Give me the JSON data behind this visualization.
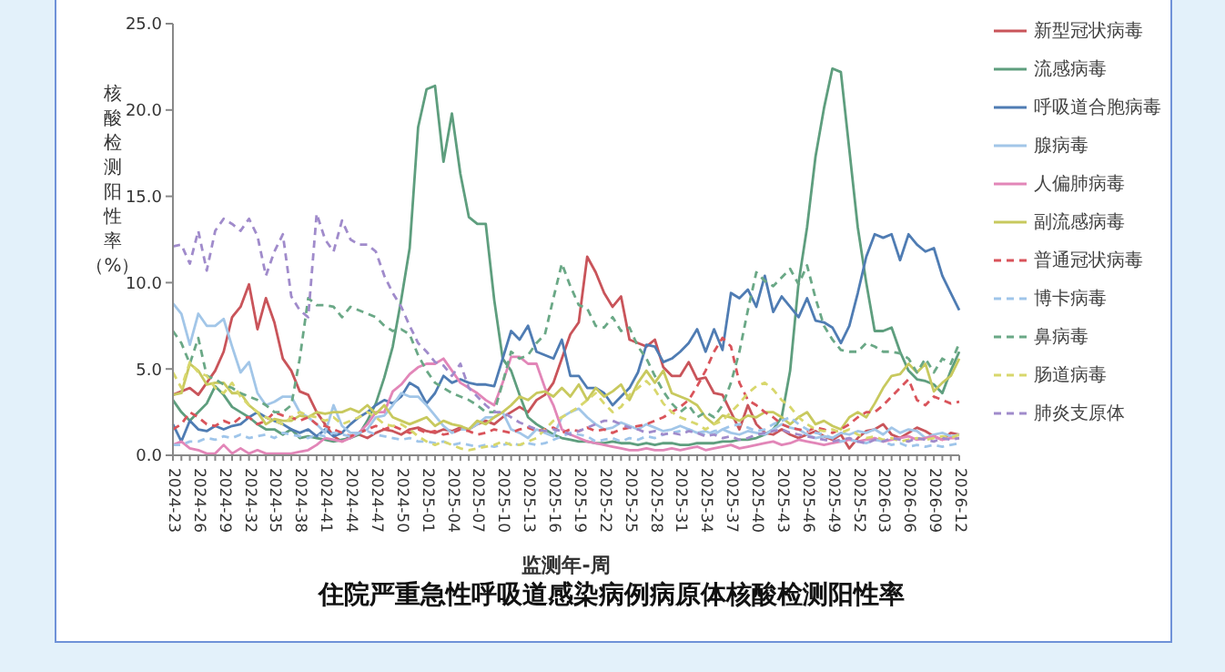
{
  "chart_data": {
    "type": "line",
    "title": "住院严重急性呼吸道感染病例病原体核酸检测阳性率",
    "xlabel": "监测年-周",
    "ylabel": "核酸检测阳性率（%）",
    "categories": [
      "2024-23",
      null,
      null,
      "2024-26",
      null,
      null,
      "2024-29",
      null,
      null,
      "2024-32",
      null,
      null,
      "2024-35",
      null,
      null,
      "2024-38",
      null,
      null,
      "2024-41",
      null,
      null,
      "2024-44",
      null,
      null,
      "2024-47",
      null,
      null,
      "2024-50",
      null,
      null,
      "2025-01",
      null,
      null,
      "2025-04",
      null,
      null,
      "2025-07",
      null,
      null,
      "2025-10",
      null,
      null,
      "2025-13",
      null,
      null,
      "2025-16",
      null,
      null,
      "2025-19",
      null,
      null,
      "2025-22",
      null,
      null,
      "2025-25",
      null,
      null,
      "2025-28",
      null,
      null,
      "2025-31",
      null,
      null,
      "2025-34",
      null,
      null,
      "2025-37",
      null,
      null,
      "2025-40",
      null,
      null,
      "2025-43",
      null,
      null,
      "2025-46",
      null,
      null,
      "2025-49",
      null,
      null,
      "2025-52",
      null,
      null,
      "2026-03",
      null,
      null,
      "2026-06",
      null,
      null,
      "2026-09",
      null,
      null,
      "2026-12"
    ],
    "ylim": [
      0,
      25
    ],
    "yticks": [
      {
        "value": 0,
        "label": "0.0"
      },
      {
        "value": 5,
        "label": "5.0"
      },
      {
        "value": 10,
        "label": "10.0"
      },
      {
        "value": 15,
        "label": "15.0"
      },
      {
        "value": 20,
        "label": "20.0"
      },
      {
        "value": 25,
        "label": "25.0"
      }
    ],
    "grid": false,
    "legend": "right",
    "marker": "none",
    "series": [
      {
        "name": "新型冠状病毒",
        "color": "#c9545a",
        "line_style": "solid",
        "values": [
          3.5,
          3.7,
          3.9,
          3.5,
          4.2,
          4.9,
          6.0,
          8.0,
          8.6,
          9.9,
          7.3,
          9.1,
          7.7,
          5.6,
          4.9,
          3.7,
          3.5,
          2.5,
          1.8,
          1.1,
          0.8,
          1.1,
          1.2,
          1.0,
          1.3,
          1.5,
          1.4,
          1.2,
          1.5,
          1.6,
          1.4,
          1.3,
          1.5,
          1.4,
          1.6,
          1.5,
          1.8,
          2.0,
          1.8,
          2.2,
          2.5,
          2.8,
          2.5,
          3.2,
          3.5,
          4.2,
          5.6,
          7.0,
          7.7,
          11.5,
          10.6,
          9.4,
          8.6,
          9.2,
          6.7,
          6.5,
          6.3,
          6.7,
          5.1,
          4.6,
          4.6,
          5.4,
          4.4,
          4.5,
          3.6,
          3.5,
          2.5,
          1.5,
          2.9,
          1.8,
          1.3,
          1.2,
          1.5,
          1.2,
          1.0,
          1.2,
          1.4,
          1.1,
          0.9,
          1.2,
          0.4,
          1.0,
          1.4,
          1.5,
          1.8,
          1.2,
          1.0,
          1.3,
          1.6,
          1.4,
          1.1,
          0.9,
          1.3,
          1.2
        ]
      },
      {
        "name": "流感病毒",
        "color": "#5e9e7e",
        "line_style": "solid",
        "values": [
          3.2,
          2.5,
          2.0,
          2.5,
          3.0,
          4.0,
          3.5,
          2.8,
          2.5,
          2.2,
          1.8,
          1.5,
          1.5,
          1.2,
          1.5,
          1.0,
          1.1,
          1.0,
          0.9,
          0.8,
          0.9,
          1.0,
          1.2,
          2.0,
          3.0,
          4.5,
          6.3,
          9.0,
          12.0,
          19.0,
          21.2,
          21.4,
          17.0,
          19.8,
          16.3,
          13.8,
          13.4,
          13.4,
          9.0,
          5.6,
          4.9,
          3.5,
          2.2,
          1.8,
          1.5,
          1.2,
          1.0,
          0.9,
          0.8,
          0.8,
          0.7,
          0.7,
          0.8,
          0.7,
          0.7,
          0.6,
          0.7,
          0.6,
          0.7,
          0.7,
          0.6,
          0.6,
          0.7,
          0.7,
          0.7,
          0.8,
          0.8,
          0.9,
          0.9,
          1.0,
          1.2,
          1.5,
          2.2,
          4.9,
          10.0,
          13.2,
          17.3,
          20.1,
          22.4,
          22.2,
          17.7,
          13.2,
          10.0,
          7.2,
          7.2,
          7.4,
          6.0,
          4.9,
          4.4,
          4.3,
          4.1,
          3.6,
          4.9,
          6.0
        ]
      },
      {
        "name": "呼吸道合胞病毒",
        "color": "#4f7cb3",
        "line_style": "solid",
        "values": [
          1.8,
          0.8,
          2.0,
          1.5,
          1.4,
          1.7,
          1.5,
          1.7,
          1.8,
          2.2,
          2.5,
          2.2,
          2.0,
          1.8,
          1.5,
          1.3,
          1.5,
          1.1,
          1.5,
          1.1,
          1.3,
          1.8,
          2.2,
          2.5,
          2.9,
          3.2,
          3.0,
          3.4,
          4.2,
          3.9,
          3.0,
          3.6,
          4.6,
          4.2,
          4.4,
          4.2,
          4.1,
          4.1,
          4.0,
          5.6,
          7.2,
          6.7,
          7.5,
          6.0,
          5.8,
          5.6,
          6.7,
          4.6,
          4.6,
          3.9,
          3.9,
          3.6,
          2.9,
          3.4,
          3.9,
          4.8,
          6.4,
          6.3,
          5.4,
          5.6,
          6.0,
          6.5,
          7.3,
          6.0,
          7.3,
          6.1,
          9.4,
          9.1,
          9.6,
          8.6,
          10.4,
          8.3,
          9.2,
          8.6,
          8.0,
          9.1,
          7.8,
          7.7,
          7.4,
          6.5,
          7.5,
          9.4,
          11.5,
          12.8,
          12.6,
          12.8,
          11.3,
          12.8,
          12.2,
          11.8,
          12.0,
          10.4,
          9.4,
          8.4
        ]
      },
      {
        "name": "腺病毒",
        "color": "#a2c6e8",
        "line_style": "solid",
        "values": [
          8.8,
          8.2,
          6.4,
          8.2,
          7.5,
          7.5,
          7.9,
          6.3,
          4.8,
          5.4,
          3.6,
          2.9,
          3.1,
          3.4,
          3.4,
          2.5,
          2.2,
          1.8,
          1.3,
          2.9,
          1.7,
          1.3,
          1.3,
          1.5,
          2.2,
          2.3,
          2.9,
          3.6,
          3.4,
          3.4,
          2.9,
          2.3,
          1.7,
          1.3,
          1.5,
          1.5,
          1.8,
          2.2,
          2.2,
          2.5,
          1.5,
          1.3,
          1.0,
          1.5,
          1.3,
          1.1,
          2.2,
          2.5,
          2.7,
          2.2,
          1.8,
          1.5,
          1.6,
          1.9,
          1.7,
          1.5,
          1.8,
          1.6,
          1.4,
          1.5,
          1.7,
          1.5,
          1.3,
          1.4,
          1.2,
          1.5,
          1.3,
          1.2,
          1.4,
          1.3,
          1.2,
          1.5,
          1.8,
          1.6,
          1.5,
          1.2,
          1.0,
          1.1,
          1.0,
          1.3,
          1.2,
          1.4,
          1.3,
          1.5,
          1.2,
          1.6,
          1.3,
          1.5,
          1.4,
          1.0,
          1.2,
          1.3,
          1.1,
          1.2
        ]
      },
      {
        "name": "人偏肺病毒",
        "color": "#e286b8",
        "line_style": "solid",
        "values": [
          0.6,
          0.8,
          0.4,
          0.3,
          0.1,
          0.1,
          0.6,
          0.1,
          0.4,
          0.1,
          0.3,
          0.1,
          0.1,
          0.1,
          0.1,
          0.2,
          0.3,
          0.6,
          1.0,
          0.9,
          0.8,
          1.0,
          1.3,
          1.8,
          2.5,
          2.5,
          3.7,
          4.1,
          4.7,
          5.1,
          5.3,
          5.3,
          5.6,
          4.9,
          4.2,
          3.9,
          3.6,
          3.2,
          2.9,
          4.2,
          5.7,
          5.7,
          5.3,
          5.3,
          3.9,
          2.9,
          1.5,
          1.2,
          1.0,
          0.8,
          0.7,
          0.6,
          0.5,
          0.4,
          0.3,
          0.3,
          0.4,
          0.3,
          0.3,
          0.4,
          0.3,
          0.4,
          0.5,
          0.3,
          0.4,
          0.5,
          0.6,
          0.4,
          0.5,
          0.6,
          0.7,
          0.8,
          0.6,
          0.7,
          0.9,
          0.8,
          0.7,
          0.6,
          0.7,
          0.8,
          0.9,
          0.8,
          0.9,
          1.0,
          0.8,
          0.9,
          1.0,
          1.1,
          0.9,
          1.0,
          1.1,
          0.9,
          1.0,
          1.0
        ]
      },
      {
        "name": "副流感病毒",
        "color": "#c8c95e",
        "line_style": "solid",
        "values": [
          3.5,
          3.6,
          5.3,
          4.9,
          4.1,
          4.2,
          4.2,
          3.6,
          3.6,
          2.9,
          2.5,
          1.8,
          2.1,
          2.0,
          2.0,
          2.3,
          2.2,
          2.5,
          2.4,
          2.5,
          2.5,
          2.7,
          2.5,
          2.9,
          2.4,
          2.9,
          2.2,
          2.0,
          1.8,
          2.0,
          2.2,
          1.7,
          2.0,
          1.8,
          1.7,
          1.5,
          2.0,
          1.8,
          2.2,
          2.5,
          2.9,
          3.4,
          3.2,
          3.6,
          3.7,
          3.4,
          3.9,
          3.4,
          4.1,
          3.2,
          3.9,
          3.4,
          3.7,
          4.1,
          3.2,
          4.2,
          4.9,
          4.2,
          4.9,
          3.6,
          3.4,
          3.2,
          2.9,
          2.2,
          1.8,
          2.3,
          2.2,
          2.0,
          2.3,
          2.2,
          2.5,
          2.5,
          2.2,
          1.8,
          2.2,
          2.5,
          1.8,
          2.0,
          1.7,
          1.5,
          2.2,
          2.5,
          2.2,
          3.0,
          3.9,
          4.6,
          4.7,
          5.3,
          4.8,
          5.3,
          3.7,
          4.2,
          4.6,
          5.6
        ]
      },
      {
        "name": "普通冠状病毒",
        "color": "#d9535a",
        "line_style": "dashed",
        "values": [
          1.5,
          1.8,
          2.5,
          2.2,
          1.8,
          1.7,
          2.0,
          1.8,
          2.2,
          2.2,
          1.8,
          2.0,
          2.5,
          2.3,
          2.2,
          2.0,
          2.2,
          1.8,
          1.7,
          1.5,
          1.3,
          1.1,
          1.3,
          1.5,
          1.7,
          1.5,
          1.7,
          1.5,
          1.3,
          1.5,
          1.3,
          1.4,
          1.2,
          1.3,
          1.5,
          1.4,
          1.2,
          1.3,
          1.5,
          1.4,
          1.3,
          1.5,
          1.6,
          1.4,
          1.5,
          1.6,
          1.3,
          1.5,
          1.4,
          1.6,
          1.4,
          1.5,
          1.3,
          1.5,
          1.6,
          1.7,
          1.8,
          2.0,
          2.2,
          2.5,
          2.8,
          3.2,
          4.0,
          4.9,
          6.0,
          6.8,
          6.3,
          4.2,
          3.2,
          2.9,
          2.5,
          2.2,
          1.8,
          1.6,
          1.5,
          1.4,
          1.6,
          1.5,
          1.3,
          1.5,
          1.8,
          2.2,
          2.5,
          2.5,
          2.9,
          3.4,
          3.9,
          4.4,
          3.2,
          2.9,
          3.4,
          3.2,
          3.0,
          3.1
        ]
      },
      {
        "name": "博卡病毒",
        "color": "#9fc5ea",
        "line_style": "dashed",
        "values": [
          0.6,
          0.6,
          0.8,
          0.8,
          1.0,
          0.9,
          1.1,
          1.0,
          1.2,
          1.0,
          1.1,
          1.2,
          1.0,
          1.3,
          1.2,
          1.1,
          1.0,
          1.2,
          1.1,
          1.3,
          1.2,
          1.1,
          1.3,
          1.4,
          1.2,
          1.1,
          1.0,
          0.9,
          1.0,
          0.8,
          0.8,
          0.7,
          0.8,
          0.6,
          0.7,
          0.6,
          0.5,
          0.6,
          0.5,
          0.6,
          0.7,
          0.6,
          0.7,
          0.6,
          0.7,
          0.9,
          1.1,
          1.3,
          1.2,
          1.1,
          0.8,
          0.9,
          1.0,
          0.8,
          1.0,
          0.9,
          1.1,
          1.0,
          1.2,
          1.3,
          1.4,
          1.5,
          1.3,
          1.2,
          1.4,
          1.5,
          1.7,
          1.8,
          1.6,
          1.4,
          1.5,
          1.8,
          2.0,
          2.2,
          1.8,
          1.5,
          1.3,
          1.2,
          1.0,
          0.8,
          0.9,
          0.8,
          0.7,
          0.9,
          0.8,
          0.6,
          0.7,
          0.5,
          0.6,
          0.5,
          0.6,
          0.5,
          0.6,
          0.7
        ]
      },
      {
        "name": "鼻病毒",
        "color": "#6aa886",
        "line_style": "dashed",
        "values": [
          7.2,
          6.5,
          5.3,
          6.8,
          4.6,
          4.4,
          4.1,
          3.9,
          3.6,
          3.4,
          3.2,
          2.9,
          2.5,
          2.5,
          2.9,
          5.6,
          9.1,
          8.7,
          8.7,
          8.6,
          8.0,
          8.6,
          8.4,
          8.2,
          8.0,
          7.5,
          7.2,
          7.3,
          7.0,
          5.8,
          4.9,
          4.2,
          3.9,
          3.6,
          3.4,
          3.2,
          2.9,
          2.5,
          2.5,
          4.2,
          6.0,
          5.6,
          5.8,
          6.5,
          7.0,
          9.1,
          11.1,
          9.8,
          8.7,
          8.5,
          7.5,
          7.4,
          8.0,
          7.2,
          7.4,
          6.3,
          5.6,
          4.6,
          3.7,
          3.0,
          2.5,
          2.9,
          2.2,
          2.5,
          2.2,
          2.9,
          4.2,
          6.0,
          8.4,
          10.6,
          10.1,
          9.8,
          10.3,
          10.8,
          9.9,
          11.0,
          9.1,
          7.5,
          6.7,
          6.1,
          6.0,
          6.0,
          6.5,
          6.3,
          6.0,
          6.0,
          5.9,
          5.6,
          4.8,
          5.6,
          4.8,
          5.6,
          5.3,
          6.5
        ]
      },
      {
        "name": "肠道病毒",
        "color": "#d8d76c",
        "line_style": "dashed",
        "values": [
          4.8,
          3.9,
          5.4,
          4.8,
          4.6,
          3.9,
          3.6,
          4.2,
          3.4,
          2.9,
          2.5,
          2.2,
          2.0,
          1.8,
          2.2,
          2.5,
          2.3,
          2.2,
          2.0,
          2.2,
          1.8,
          2.0,
          2.2,
          2.5,
          2.2,
          1.8,
          1.7,
          1.8,
          1.5,
          1.1,
          0.8,
          0.6,
          0.8,
          0.6,
          0.4,
          0.3,
          0.4,
          0.5,
          0.6,
          0.8,
          0.6,
          0.6,
          0.8,
          1.0,
          1.5,
          2.0,
          2.2,
          2.5,
          2.8,
          3.2,
          3.6,
          3.0,
          2.5,
          2.8,
          3.5,
          3.9,
          4.3,
          3.8,
          3.0,
          2.5,
          2.2,
          2.0,
          1.8,
          1.5,
          1.8,
          2.0,
          2.5,
          3.0,
          3.6,
          4.0,
          4.2,
          3.8,
          3.2,
          2.8,
          2.2,
          1.8,
          1.5,
          1.4,
          1.5,
          1.3,
          1.5,
          1.2,
          1.0,
          1.1,
          0.9,
          1.0,
          0.8,
          0.9,
          1.0,
          0.9,
          1.0,
          1.1,
          1.0,
          1.2
        ]
      },
      {
        "name": "肺炎支原体",
        "color": "#a08bcb",
        "line_style": "dashed",
        "values": [
          12.1,
          12.2,
          11.1,
          13.0,
          10.7,
          13.0,
          13.7,
          13.4,
          13.0,
          13.7,
          12.7,
          10.4,
          11.8,
          12.8,
          9.2,
          8.4,
          8.0,
          14.0,
          12.5,
          11.8,
          13.6,
          12.5,
          12.2,
          12.2,
          11.8,
          10.4,
          9.4,
          8.6,
          7.5,
          6.5,
          6.0,
          5.4,
          5.2,
          4.6,
          5.3,
          3.9,
          3.4,
          2.9,
          2.5,
          2.5,
          2.2,
          1.9,
          1.7,
          1.5,
          1.4,
          1.5,
          1.4,
          1.2,
          1.4,
          1.6,
          1.8,
          2.0,
          2.0,
          1.8,
          1.6,
          1.5,
          1.3,
          1.4,
          1.2,
          1.3,
          1.2,
          1.4,
          1.3,
          1.1,
          1.2,
          1.0,
          1.1,
          0.9,
          1.0,
          1.2,
          1.3,
          1.4,
          1.5,
          1.3,
          1.2,
          1.1,
          1.0,
          0.9,
          0.8,
          0.9,
          1.0,
          0.8,
          0.7,
          0.9,
          0.8,
          1.0,
          0.9,
          0.8,
          1.0,
          0.9,
          0.8,
          1.0,
          0.9,
          1.0
        ]
      }
    ]
  }
}
